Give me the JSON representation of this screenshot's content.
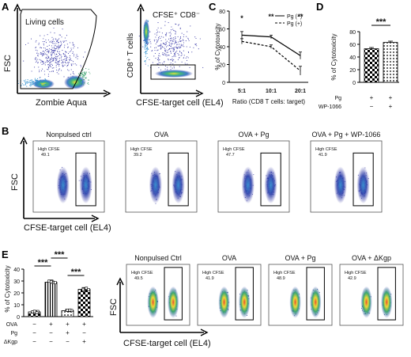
{
  "panels": {
    "A": {
      "letter": "A",
      "gate1": "Living cells",
      "xlabel1": "Zombie Aqua",
      "ylabel1": "FSC",
      "gate2": "CFSE⁺ CD8⁻",
      "xlabel2": "CFSE-target cell (EL4)",
      "ylabel2": "CD8⁺ T cells"
    },
    "B": {
      "letter": "B",
      "titles": [
        "Nonpulsed ctrl",
        "OVA",
        "OVA + Pg",
        "OVA + Pg + WP-1066"
      ],
      "gate_label": "High CFSE",
      "values": [
        "49.1",
        "39.2",
        "47.7",
        "41.9"
      ],
      "ylabel": "FSC",
      "xlabel": "CFSE-target cell (EL4)"
    },
    "C": {
      "letter": "C"
    },
    "D": {
      "letter": "D"
    },
    "E": {
      "letter": "E"
    },
    "E2": {
      "titles": [
        "Nonpulsed Ctrl",
        "OVA",
        "OVA + Pg",
        "OVA + ΔKgp"
      ],
      "gate_label": "High CFSE",
      "values": [
        "49.5",
        "41.9",
        "48.9",
        "42.9"
      ],
      "ylabel": "FSC",
      "xlabel": "CFSE-target cell (EL4)"
    }
  },
  "chart_data": [
    {
      "id": "C",
      "type": "line",
      "categories": [
        "5:1",
        "10:1",
        "20:1"
      ],
      "xlabel": "Ratio (CD8 T cells: target)",
      "ylabel": "% of Cytotoxicity",
      "ylim": [
        0,
        80
      ],
      "yticks": [
        0,
        20,
        40,
        60,
        80
      ],
      "series": [
        {
          "name": "Pg (−)",
          "style": "solid",
          "values": [
            53,
            51,
            30
          ],
          "err": [
            4,
            2,
            4
          ]
        },
        {
          "name": "Pg (+)",
          "style": "dashed",
          "values": [
            46,
            40,
            13
          ],
          "err": [
            3,
            2,
            5
          ]
        }
      ],
      "significance": [
        "*",
        "**",
        "**"
      ],
      "legend": "top-right"
    },
    {
      "id": "D",
      "type": "bar",
      "ylabel": "% of Cytotoxicity",
      "ylim": [
        0,
        80
      ],
      "yticks": [
        0,
        20,
        40,
        60,
        80
      ],
      "values": [
        53,
        63
      ],
      "err": [
        2,
        2
      ],
      "patterns": [
        "checker",
        "dots"
      ],
      "rows": [
        {
          "label": "Pg",
          "marks": [
            "+",
            "+"
          ]
        },
        {
          "label": "WP-1066",
          "marks": [
            "−",
            "+"
          ]
        }
      ],
      "significance": "***"
    },
    {
      "id": "E",
      "type": "bar",
      "ylabel": "% of Cytotoxicity",
      "ylim": [
        0,
        40
      ],
      "yticks": [
        0,
        10,
        20,
        30,
        40
      ],
      "values": [
        4,
        29,
        5,
        23
      ],
      "err": [
        1,
        1.5,
        1,
        1.5
      ],
      "patterns": [
        "checker",
        "vlines",
        "dots",
        "checker"
      ],
      "rows": [
        {
          "label": "OVA",
          "marks": [
            "−",
            "+",
            "+",
            "+"
          ]
        },
        {
          "label": "Pg",
          "marks": [
            "−",
            "−",
            "+",
            "−"
          ]
        },
        {
          "label": "ΔKgp",
          "marks": [
            "−",
            "−",
            "−",
            "+"
          ]
        }
      ],
      "significance": [
        "***",
        "***",
        "***"
      ]
    }
  ]
}
